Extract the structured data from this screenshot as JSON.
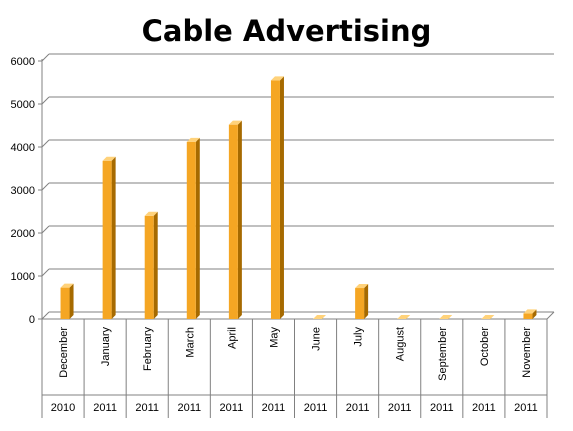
{
  "chart_data": {
    "type": "bar",
    "title": "Cable Advertising",
    "xlabel": "",
    "ylabel": "",
    "ylim": [
      0,
      6000
    ],
    "yticks": [
      "0",
      "1000",
      "2000",
      "3000",
      "4000",
      "5000",
      "6000"
    ],
    "categories": [
      {
        "month": "December",
        "year": "2010"
      },
      {
        "month": "January",
        "year": "2011"
      },
      {
        "month": "February",
        "year": "2011"
      },
      {
        "month": "March",
        "year": "2011"
      },
      {
        "month": "April",
        "year": "2011"
      },
      {
        "month": "May",
        "year": "2011"
      },
      {
        "month": "June",
        "year": "2011"
      },
      {
        "month": "July",
        "year": "2011"
      },
      {
        "month": "August",
        "year": "2011"
      },
      {
        "month": "September",
        "year": "2011"
      },
      {
        "month": "October",
        "year": "2011"
      },
      {
        "month": "November",
        "year": "2011"
      }
    ],
    "values": [
      730,
      3680,
      2400,
      4120,
      4520,
      5550,
      0,
      720,
      0,
      0,
      0,
      130
    ],
    "grid": true,
    "legend": "none",
    "colors": {
      "bar_front": "#F5A623",
      "bar_side": "#A66A00",
      "bar_top": "#FFD27A",
      "grid": "#808080",
      "axis": "#808080"
    }
  }
}
